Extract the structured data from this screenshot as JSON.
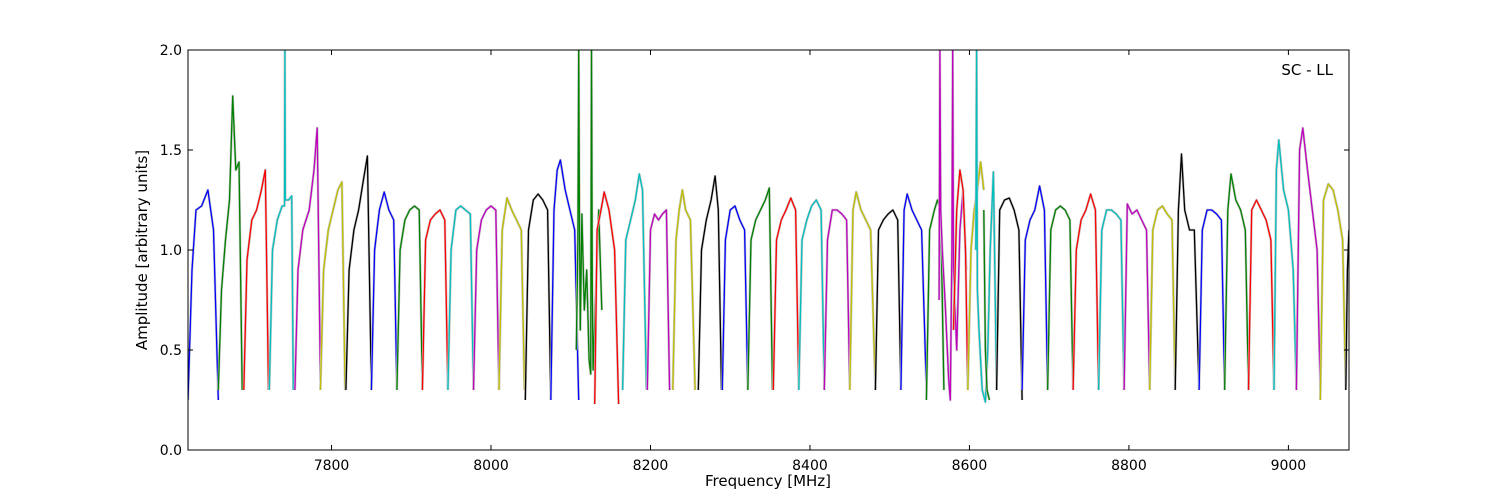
{
  "chart_data": {
    "type": "line",
    "title": "",
    "annotation": "SC - LL",
    "xlabel": "Frequency [MHz]",
    "ylabel": "Amplitude [arbitrary units]",
    "xlim": [
      7620,
      9076
    ],
    "ylim": [
      0,
      2.0
    ],
    "xticks": [
      7800,
      8000,
      8200,
      8400,
      8600,
      8800,
      9000
    ],
    "xtick_labels": [
      "7800",
      "8000",
      "8200",
      "8400",
      "8600",
      "8800",
      "9000"
    ],
    "yticks": [
      0.0,
      0.5,
      1.0,
      1.5,
      2.0
    ],
    "ytick_labels": [
      "0.0",
      "0.5",
      "1.0",
      "1.5",
      "2.0"
    ],
    "grid": false,
    "channel_width_mhz": 32,
    "color_cycle": [
      "#0000ff",
      "#008000",
      "#ff0000",
      "#00bfbf",
      "#bf00bf",
      "#bfbf00",
      "#000000"
    ],
    "series": [
      {
        "color": "#0000ff",
        "x": [
          7620,
          7625,
          7630,
          7637,
          7645,
          7652,
          7658
        ],
        "y": [
          0.25,
          0.9,
          1.2,
          1.22,
          1.3,
          1.1,
          0.25
        ]
      },
      {
        "color": "#008000",
        "x": [
          7658,
          7662,
          7667,
          7672,
          7676,
          7680,
          7684,
          7688
        ],
        "y": [
          0.3,
          0.8,
          1.05,
          1.25,
          1.77,
          1.4,
          1.44,
          0.3
        ]
      },
      {
        "color": "#ff0000",
        "x": [
          7690,
          7694,
          7700,
          7706,
          7712,
          7717,
          7721
        ],
        "y": [
          0.3,
          0.95,
          1.15,
          1.2,
          1.3,
          1.4,
          0.3
        ]
      },
      {
        "color": "#00bfbf",
        "x": [
          7722,
          7726,
          7732,
          7738,
          7741,
          7741.5,
          7742,
          7746,
          7750,
          7752
        ],
        "y": [
          0.3,
          1.0,
          1.15,
          1.22,
          1.22,
          2.0,
          1.25,
          1.25,
          1.27,
          0.3
        ]
      },
      {
        "color": "#bf00bf",
        "x": [
          7754,
          7758,
          7764,
          7772,
          7778,
          7782,
          7786
        ],
        "y": [
          0.3,
          0.9,
          1.1,
          1.2,
          1.4,
          1.61,
          0.35
        ]
      },
      {
        "color": "#bfbf00",
        "x": [
          7786,
          7790,
          7796,
          7802,
          7808,
          7813,
          7817
        ],
        "y": [
          0.3,
          0.9,
          1.1,
          1.2,
          1.3,
          1.34,
          0.3
        ]
      },
      {
        "color": "#000000",
        "x": [
          7818,
          7822,
          7828,
          7834,
          7840,
          7845,
          7850
        ],
        "y": [
          0.3,
          0.9,
          1.1,
          1.2,
          1.35,
          1.47,
          0.3
        ]
      },
      {
        "color": "#0000ff",
        "x": [
          7850,
          7854,
          7860,
          7866,
          7872,
          7878,
          7882
        ],
        "y": [
          0.3,
          1.0,
          1.2,
          1.29,
          1.2,
          1.15,
          0.3
        ]
      },
      {
        "color": "#008000",
        "x": [
          7882,
          7886,
          7892,
          7898,
          7904,
          7910,
          7914
        ],
        "y": [
          0.3,
          1.0,
          1.15,
          1.2,
          1.22,
          1.2,
          0.3
        ]
      },
      {
        "color": "#ff0000",
        "x": [
          7914,
          7918,
          7924,
          7930,
          7936,
          7942,
          7946
        ],
        "y": [
          0.3,
          1.05,
          1.15,
          1.18,
          1.2,
          1.15,
          0.3
        ]
      },
      {
        "color": "#00bfbf",
        "x": [
          7946,
          7950,
          7956,
          7962,
          7968,
          7974,
          7978
        ],
        "y": [
          0.3,
          1.0,
          1.2,
          1.22,
          1.2,
          1.18,
          0.3
        ]
      },
      {
        "color": "#bf00bf",
        "x": [
          7978,
          7982,
          7988,
          7994,
          8000,
          8006,
          8010
        ],
        "y": [
          0.3,
          1.0,
          1.15,
          1.2,
          1.22,
          1.2,
          0.3
        ]
      },
      {
        "color": "#bfbf00",
        "x": [
          8010,
          8014,
          8020,
          8026,
          8032,
          8038,
          8042
        ],
        "y": [
          0.3,
          1.1,
          1.26,
          1.2,
          1.15,
          1.1,
          0.3
        ]
      },
      {
        "color": "#000000",
        "x": [
          8043,
          8047,
          8053,
          8059,
          8065,
          8071,
          8075
        ],
        "y": [
          0.25,
          1.1,
          1.25,
          1.28,
          1.25,
          1.2,
          0.25
        ]
      },
      {
        "color": "#0000ff",
        "x": [
          8075,
          8079,
          8083,
          8087,
          8093,
          8099,
          8105,
          8110
        ],
        "y": [
          0.25,
          1.2,
          1.4,
          1.45,
          1.3,
          1.2,
          1.1,
          0.25
        ]
      },
      {
        "color": "#008000",
        "x": [
          8107,
          8109,
          8110,
          8111,
          8112,
          8114,
          8117,
          8120,
          8123,
          8125,
          8126,
          8127,
          8128,
          8131,
          8135,
          8139
        ],
        "y": [
          0.5,
          1.05,
          2.0,
          1.1,
          0.6,
          1.18,
          0.7,
          0.9,
          0.45,
          0.38,
          2.0,
          0.8,
          0.4,
          0.75,
          1.2,
          0.7
        ]
      },
      {
        "color": "#ff0000",
        "x": [
          8130,
          8133,
          8138,
          8142,
          8148,
          8155,
          8160
        ],
        "y": [
          0.23,
          1.1,
          1.2,
          1.29,
          1.2,
          1.0,
          0.23
        ]
      },
      {
        "color": "#00bfbf",
        "x": [
          8165,
          8169,
          8175,
          8181,
          8186,
          8190,
          8195
        ],
        "y": [
          0.3,
          1.05,
          1.15,
          1.25,
          1.38,
          1.3,
          0.3
        ]
      },
      {
        "color": "#bf00bf",
        "x": [
          8196,
          8200,
          8205,
          8210,
          8215,
          8220,
          8224
        ],
        "y": [
          0.3,
          1.1,
          1.18,
          1.15,
          1.18,
          1.2,
          0.3
        ]
      },
      {
        "color": "#bfbf00",
        "x": [
          8228,
          8232,
          8236,
          8240,
          8244,
          8250,
          8256
        ],
        "y": [
          0.3,
          1.05,
          1.2,
          1.3,
          1.2,
          1.15,
          0.3
        ]
      },
      {
        "color": "#000000",
        "x": [
          8260,
          8264,
          8270,
          8276,
          8281,
          8285,
          8289
        ],
        "y": [
          0.3,
          1.0,
          1.15,
          1.25,
          1.37,
          1.2,
          0.3
        ]
      },
      {
        "color": "#0000ff",
        "x": [
          8290,
          8294,
          8300,
          8306,
          8312,
          8318,
          8322
        ],
        "y": [
          0.3,
          1.05,
          1.2,
          1.22,
          1.15,
          1.1,
          0.3
        ]
      },
      {
        "color": "#008000",
        "x": [
          8322,
          8326,
          8332,
          8338,
          8344,
          8349,
          8353
        ],
        "y": [
          0.3,
          1.05,
          1.15,
          1.2,
          1.25,
          1.31,
          0.3
        ]
      },
      {
        "color": "#ff0000",
        "x": [
          8354,
          8358,
          8364,
          8370,
          8376,
          8382,
          8386
        ],
        "y": [
          0.3,
          1.05,
          1.15,
          1.2,
          1.26,
          1.2,
          0.3
        ]
      },
      {
        "color": "#00bfbf",
        "x": [
          8386,
          8390,
          8396,
          8402,
          8408,
          8414,
          8418
        ],
        "y": [
          0.3,
          1.05,
          1.15,
          1.22,
          1.25,
          1.2,
          0.3
        ]
      },
      {
        "color": "#bf00bf",
        "x": [
          8418,
          8422,
          8428,
          8434,
          8440,
          8446,
          8450
        ],
        "y": [
          0.3,
          1.05,
          1.2,
          1.2,
          1.18,
          1.15,
          0.3
        ]
      },
      {
        "color": "#bfbf00",
        "x": [
          8450,
          8454,
          8458,
          8464,
          8470,
          8476,
          8482
        ],
        "y": [
          0.3,
          1.2,
          1.29,
          1.2,
          1.15,
          1.1,
          0.3
        ]
      },
      {
        "color": "#000000",
        "x": [
          8482,
          8486,
          8492,
          8498,
          8504,
          8510,
          8514
        ],
        "y": [
          0.3,
          1.1,
          1.15,
          1.18,
          1.2,
          1.15,
          0.3
        ]
      },
      {
        "color": "#0000ff",
        "x": [
          8514,
          8518,
          8522,
          8528,
          8534,
          8540,
          8546
        ],
        "y": [
          0.3,
          1.2,
          1.28,
          1.2,
          1.15,
          1.1,
          0.3
        ]
      },
      {
        "color": "#008000",
        "x": [
          8546,
          8550,
          8556,
          8560,
          8564,
          8568
        ],
        "y": [
          0.25,
          1.1,
          1.2,
          1.25,
          1.2,
          0.3
        ]
      },
      {
        "color": "#bf00bf",
        "x": [
          8562,
          8563,
          8564,
          8566,
          8570,
          8574,
          8576,
          8578,
          8579,
          8580,
          8584,
          8588,
          8592,
          8596
        ],
        "y": [
          0.75,
          2.0,
          1.2,
          1.0,
          0.7,
          0.35,
          0.25,
          1.0,
          2.0,
          0.9,
          0.5,
          1.1,
          1.3,
          0.9
        ]
      },
      {
        "color": "#ff0000",
        "x": [
          8580,
          8584,
          8588,
          8592,
          8595,
          8598
        ],
        "y": [
          0.6,
          1.2,
          1.4,
          1.3,
          1.0,
          0.3
        ]
      },
      {
        "color": "#bfbf00",
        "x": [
          8598,
          8602,
          8606,
          8610,
          8614,
          8618
        ],
        "y": [
          0.3,
          1.0,
          1.2,
          1.3,
          1.44,
          1.3
        ]
      },
      {
        "color": "#00bfbf",
        "x": [
          8608,
          8609,
          8610,
          8612,
          8616,
          8620,
          8623,
          8626,
          8630,
          8634
        ],
        "y": [
          1.0,
          2.0,
          0.8,
          0.6,
          0.3,
          0.24,
          0.5,
          1.0,
          1.39,
          0.3
        ]
      },
      {
        "color": "#008000",
        "x": [
          8618,
          8620,
          8622,
          8625
        ],
        "y": [
          1.2,
          0.5,
          0.3,
          0.25
        ]
      },
      {
        "color": "#000000",
        "x": [
          8634,
          8638,
          8644,
          8650,
          8656,
          8662,
          8666
        ],
        "y": [
          0.3,
          1.2,
          1.25,
          1.26,
          1.2,
          1.1,
          0.25
        ]
      },
      {
        "color": "#0000ff",
        "x": [
          8666,
          8670,
          8676,
          8682,
          8688,
          8694,
          8698
        ],
        "y": [
          0.3,
          1.05,
          1.15,
          1.2,
          1.32,
          1.2,
          0.3
        ]
      },
      {
        "color": "#008000",
        "x": [
          8698,
          8702,
          8708,
          8714,
          8720,
          8726,
          8730
        ],
        "y": [
          0.3,
          1.1,
          1.2,
          1.22,
          1.2,
          1.15,
          0.3
        ]
      },
      {
        "color": "#ff0000",
        "x": [
          8730,
          8734,
          8740,
          8746,
          8752,
          8758,
          8762
        ],
        "y": [
          0.3,
          1.0,
          1.15,
          1.2,
          1.28,
          1.2,
          0.3
        ]
      },
      {
        "color": "#00bfbf",
        "x": [
          8762,
          8766,
          8772,
          8778,
          8784,
          8790,
          8794
        ],
        "y": [
          0.3,
          1.1,
          1.2,
          1.2,
          1.18,
          1.15,
          0.3
        ]
      },
      {
        "color": "#bf00bf",
        "x": [
          8794,
          8798,
          8804,
          8810,
          8816,
          8822,
          8826
        ],
        "y": [
          0.3,
          1.23,
          1.18,
          1.2,
          1.15,
          1.1,
          0.3
        ]
      },
      {
        "color": "#bfbf00",
        "x": [
          8826,
          8830,
          8836,
          8842,
          8848,
          8854,
          8858
        ],
        "y": [
          0.3,
          1.1,
          1.2,
          1.22,
          1.18,
          1.15,
          0.3
        ]
      },
      {
        "color": "#000000",
        "x": [
          8858,
          8862,
          8866,
          8870,
          8876,
          8882,
          8888
        ],
        "y": [
          0.3,
          1.2,
          1.48,
          1.2,
          1.1,
          1.1,
          0.3
        ]
      },
      {
        "color": "#0000ff",
        "x": [
          8888,
          8892,
          8898,
          8904,
          8910,
          8916,
          8920
        ],
        "y": [
          0.3,
          1.1,
          1.2,
          1.2,
          1.18,
          1.15,
          0.3
        ]
      },
      {
        "color": "#008000",
        "x": [
          8920,
          8924,
          8928,
          8934,
          8940,
          8946,
          8950
        ],
        "y": [
          0.3,
          1.2,
          1.38,
          1.25,
          1.2,
          1.1,
          0.3
        ]
      },
      {
        "color": "#ff0000",
        "x": [
          8950,
          8954,
          8960,
          8966,
          8972,
          8978,
          8982
        ],
        "y": [
          0.3,
          1.2,
          1.25,
          1.2,
          1.15,
          1.05,
          0.3
        ]
      },
      {
        "color": "#00bfbf",
        "x": [
          8982,
          8985,
          8988,
          8994,
          9000,
          9006,
          9010
        ],
        "y": [
          0.3,
          1.4,
          1.55,
          1.3,
          1.2,
          0.9,
          0.3
        ]
      },
      {
        "color": "#bf00bf",
        "x": [
          9010,
          9014,
          9018,
          9024,
          9030,
          9036,
          9040
        ],
        "y": [
          0.3,
          1.5,
          1.61,
          1.4,
          1.2,
          1.0,
          0.3
        ]
      },
      {
        "color": "#bfbf00",
        "x": [
          9040,
          9044,
          9050,
          9056,
          9062,
          9068,
          9072
        ],
        "y": [
          0.25,
          1.25,
          1.33,
          1.3,
          1.2,
          1.05,
          0.3
        ]
      },
      {
        "color": "#000000",
        "x": [
          9072,
          9074,
          9076
        ],
        "y": [
          0.3,
          0.9,
          1.1
        ]
      }
    ]
  }
}
